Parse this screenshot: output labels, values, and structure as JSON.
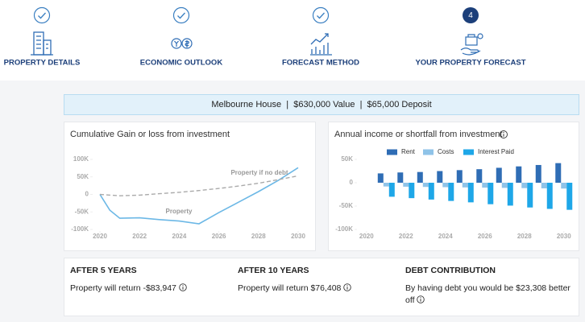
{
  "steps": [
    {
      "label": "PROPERTY DETAILS"
    },
    {
      "label": "ECONOMIC OUTLOOK"
    },
    {
      "label": "FORECAST METHOD"
    },
    {
      "label": "YOUR PROPERTY FORECAST",
      "number": "4"
    }
  ],
  "summary": "Melbourne House  |  $630,000 Value  |  $65,000 Deposit",
  "chart_data": [
    {
      "type": "line",
      "title": "Cumulative Gain or loss from investment",
      "xlim": [
        2020,
        2030
      ],
      "xticks": [
        2020,
        2022,
        2024,
        2026,
        2028,
        2030
      ],
      "ylim": [
        -100000,
        100000
      ],
      "yticks": [
        {
          "value": 100000,
          "label": "100K"
        },
        {
          "value": 50000,
          "label": "50K"
        },
        0,
        {
          "value": -50000,
          "label": "-50K"
        },
        {
          "value": -100000,
          "label": "-100K"
        }
      ],
      "grid": false,
      "series": [
        {
          "name": "Property",
          "color": "#6cb8e6",
          "dashed": false,
          "x": [
            2020,
            2020.5,
            2021,
            2022,
            2023,
            2024,
            2025,
            2026,
            2027,
            2028,
            2029,
            2030
          ],
          "values": [
            0,
            -45000,
            -68000,
            -67000,
            -72000,
            -76000,
            -83947,
            -52000,
            -22000,
            8000,
            40000,
            76408
          ]
        },
        {
          "name": "Property if no debt",
          "color": "#aaaaaa",
          "dashed": true,
          "x": [
            2020,
            2021,
            2022,
            2023,
            2024,
            2025,
            2026,
            2027,
            2028,
            2029,
            2030
          ],
          "values": [
            0,
            -4000,
            -2000,
            2000,
            6000,
            11000,
            17000,
            24000,
            32000,
            42000,
            53100
          ]
        }
      ]
    },
    {
      "type": "bar",
      "title": "Annual income or shortfall from investment",
      "x": [
        2021,
        2022,
        2023,
        2024,
        2025,
        2026,
        2027,
        2028,
        2029,
        2030
      ],
      "xlim": [
        2019.6,
        2030.5
      ],
      "xticks": [
        2020,
        2022,
        2024,
        2026,
        2028,
        2030
      ],
      "ylim": [
        -100000,
        50000
      ],
      "yticks": [
        {
          "value": 50000,
          "label": "50K"
        },
        0,
        {
          "value": -50000,
          "label": "-50K"
        },
        {
          "value": -100000,
          "label": "-100K"
        }
      ],
      "grid": false,
      "legend": "top",
      "series": [
        {
          "name": "Rent",
          "color": "#2f6db5",
          "values": [
            20000,
            22000,
            23000,
            25000,
            27000,
            29000,
            32000,
            35000,
            38000,
            42000
          ]
        },
        {
          "name": "Costs",
          "color": "#8fc3e8",
          "values": [
            -8000,
            -8500,
            -9000,
            -9500,
            -10000,
            -10500,
            -11000,
            -11500,
            -12000,
            -12500
          ]
        },
        {
          "name": "Interest Paid",
          "color": "#1ea7e8",
          "values": [
            -30000,
            -33000,
            -36000,
            -39000,
            -42000,
            -46000,
            -49000,
            -53000,
            -56000,
            -58000
          ]
        }
      ]
    }
  ],
  "results": [
    {
      "heading": "AFTER 5 YEARS",
      "text": "Property will return -$83,947"
    },
    {
      "heading": "AFTER 10 YEARS",
      "text": "Property will return $76,408"
    },
    {
      "heading": "DEBT CONTRIBUTION",
      "text": "By having debt you would be $23,308 better off"
    }
  ]
}
